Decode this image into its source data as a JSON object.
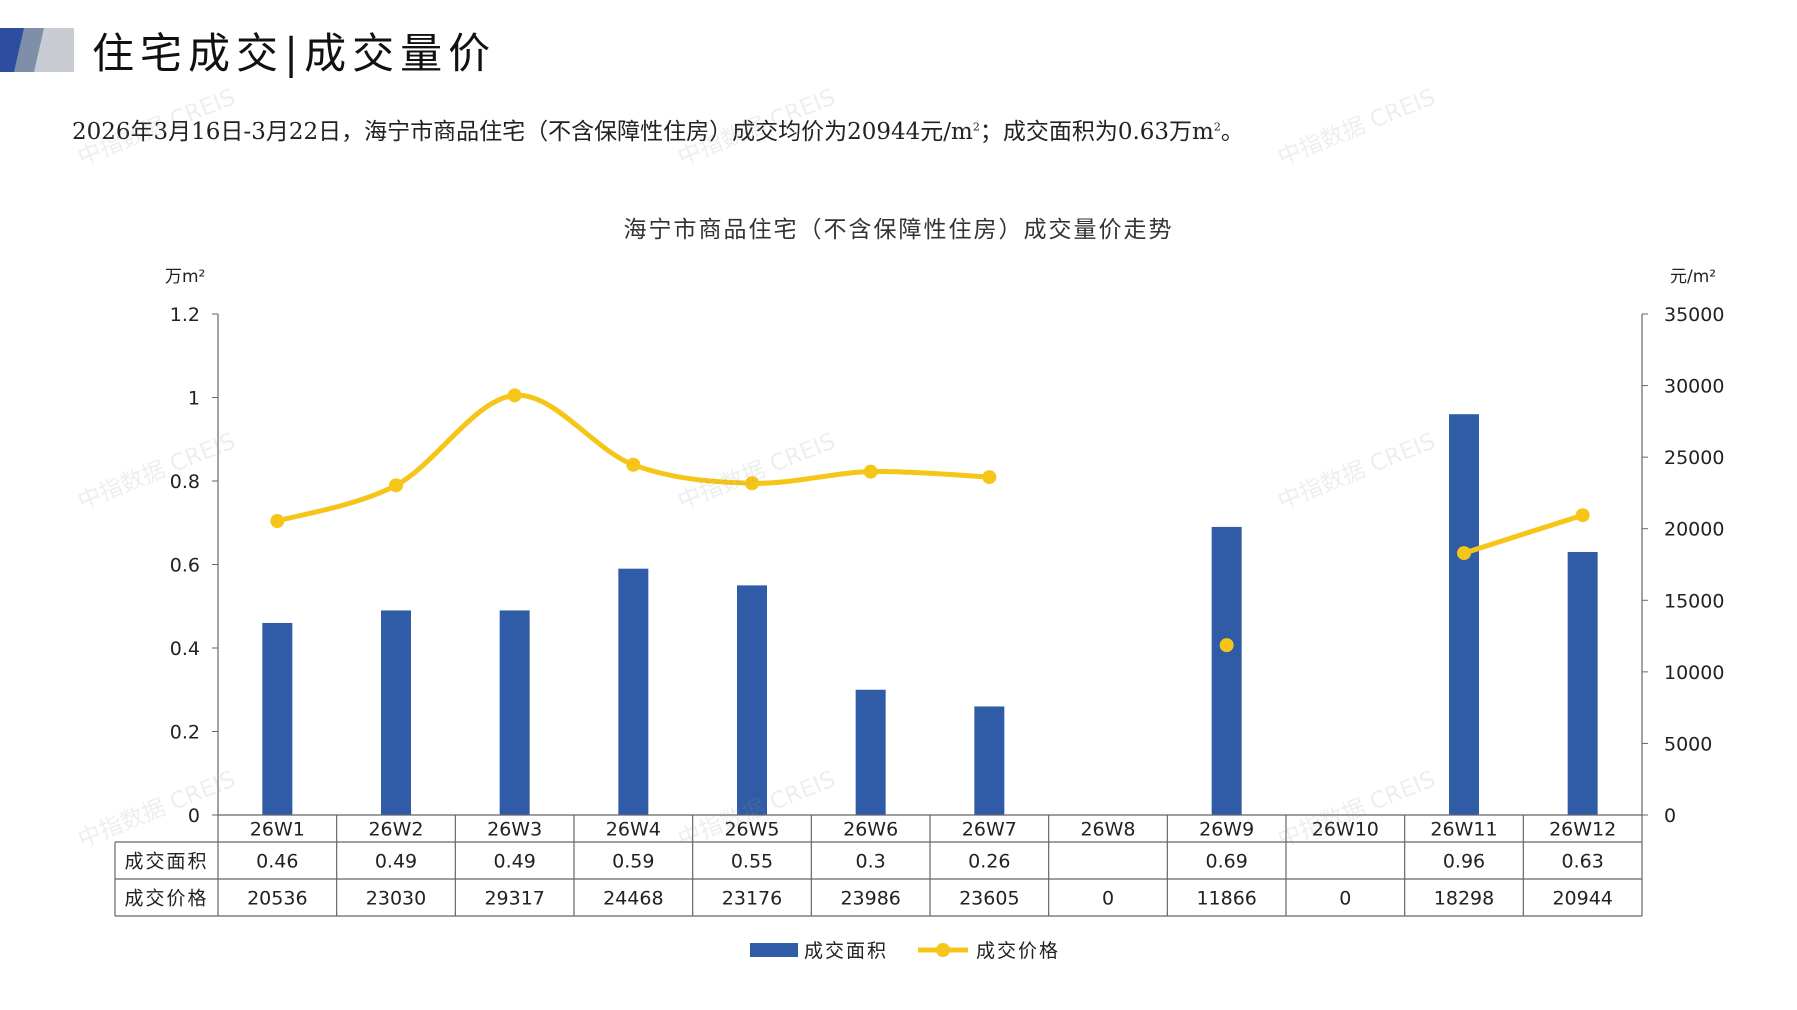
{
  "header": {
    "title": "住宅成交|成交量价",
    "summary_prefix": "2026年3月16日-3月22日，海宁市商品住宅（不含保障性住房）成交均价为20944元/m",
    "summary_mid": "；成交面积为0.63万m",
    "summary_suffix": "。",
    "superscript": "2"
  },
  "watermark": "中指数据 CREIS",
  "colors": {
    "bar": "#2f5ba7",
    "line": "#f5c518",
    "axis": "#666666",
    "title_accent": "#2d4ea0"
  },
  "chart_data": {
    "type": "bar",
    "title": "海宁市商品住宅（不含保障性住房）成交量价走势",
    "categories": [
      "26W1",
      "26W2",
      "26W3",
      "26W4",
      "26W5",
      "26W6",
      "26W7",
      "26W8",
      "26W9",
      "26W10",
      "26W11",
      "26W12"
    ],
    "y_left": {
      "unit": "万m²",
      "ylim": [
        0,
        1.2
      ],
      "ticks": [
        "0",
        "0.2",
        "0.4",
        "0.6",
        "0.8",
        "1",
        "1.2"
      ]
    },
    "y_right": {
      "unit": "元/m²",
      "ylim": [
        0,
        35000
      ],
      "ticks": [
        "0",
        "5000",
        "10000",
        "15000",
        "20000",
        "25000",
        "30000",
        "35000"
      ]
    },
    "series": [
      {
        "name": "成交面积",
        "type": "bar",
        "axis": "left",
        "values": [
          0.46,
          0.49,
          0.49,
          0.59,
          0.55,
          0.3,
          0.26,
          null,
          0.69,
          null,
          0.96,
          0.63
        ],
        "labels": [
          "0.46",
          "0.49",
          "0.49",
          "0.59",
          "0.55",
          "0.3",
          "0.26",
          "",
          "0.69",
          "",
          "0.96",
          "0.63"
        ]
      },
      {
        "name": "成交价格",
        "type": "line",
        "axis": "right",
        "values": [
          20536,
          23030,
          29317,
          24468,
          23176,
          23986,
          23605,
          0,
          11866,
          0,
          18298,
          20944
        ],
        "labels": [
          "20536",
          "23030",
          "29317",
          "24468",
          "23176",
          "23986",
          "23605",
          "0",
          "11866",
          "0",
          "18298",
          "20944"
        ]
      }
    ],
    "grid": false,
    "legend": "bottom"
  }
}
